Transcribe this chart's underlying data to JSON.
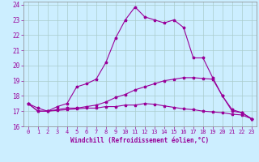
{
  "xlabel": "Windchill (Refroidissement éolien,°C)",
  "background_color": "#cceeff",
  "grid_color": "#aacccc",
  "line_color": "#990099",
  "xlim": [
    -0.5,
    23.5
  ],
  "ylim": [
    16,
    24.2
  ],
  "xticks": [
    0,
    1,
    2,
    3,
    4,
    5,
    6,
    7,
    8,
    9,
    10,
    11,
    12,
    13,
    14,
    15,
    16,
    17,
    18,
    19,
    20,
    21,
    22,
    23
  ],
  "yticks": [
    16,
    17,
    18,
    19,
    20,
    21,
    22,
    23,
    24
  ],
  "line1_x": [
    0,
    1,
    2,
    3,
    4,
    5,
    6,
    7,
    8,
    9,
    10,
    11,
    12,
    13,
    14,
    15,
    16,
    17,
    18,
    19,
    20,
    21,
    22,
    23
  ],
  "line1_y": [
    17.5,
    17.2,
    17.0,
    17.3,
    17.5,
    18.6,
    18.8,
    19.1,
    20.2,
    21.8,
    23.0,
    23.85,
    23.2,
    23.0,
    22.8,
    23.0,
    22.5,
    20.5,
    20.5,
    19.2,
    18.0,
    17.1,
    16.9,
    16.5
  ],
  "line2_x": [
    0,
    1,
    2,
    3,
    4,
    5,
    6,
    7,
    8,
    9,
    10,
    11,
    12,
    13,
    14,
    15,
    16,
    17,
    18,
    19,
    20,
    21,
    22,
    23
  ],
  "line2_y": [
    17.5,
    17.0,
    17.0,
    17.1,
    17.2,
    17.2,
    17.3,
    17.4,
    17.6,
    17.9,
    18.1,
    18.4,
    18.6,
    18.8,
    19.0,
    19.1,
    19.2,
    19.2,
    19.15,
    19.1,
    18.0,
    17.0,
    16.9,
    16.5
  ],
  "line3_x": [
    0,
    1,
    2,
    3,
    4,
    5,
    6,
    7,
    8,
    9,
    10,
    11,
    12,
    13,
    14,
    15,
    16,
    17,
    18,
    19,
    20,
    21,
    22,
    23
  ],
  "line3_y": [
    17.5,
    17.0,
    17.0,
    17.05,
    17.1,
    17.15,
    17.2,
    17.2,
    17.3,
    17.3,
    17.4,
    17.4,
    17.5,
    17.45,
    17.35,
    17.25,
    17.15,
    17.1,
    17.0,
    16.95,
    16.9,
    16.8,
    16.75,
    16.5
  ]
}
